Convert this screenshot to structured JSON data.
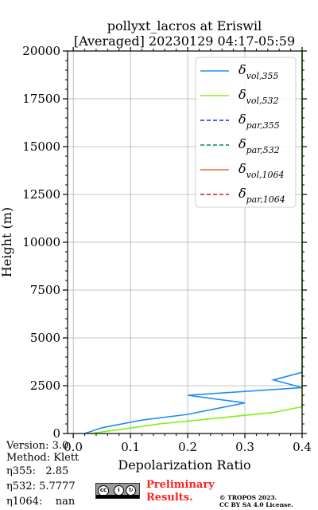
{
  "chart_data": {
    "type": "line",
    "title_lines": [
      "pollyxt_lacros at Eriswil",
      "[Averaged] 20230129 04:17-05:59"
    ],
    "xlabel": "Depolarization Ratio",
    "ylabel": "Height (m)",
    "xlim": [
      -0.01,
      0.4
    ],
    "ylim": [
      0,
      20000
    ],
    "xticks": [
      0.0,
      0.1,
      0.2,
      0.3,
      0.4
    ],
    "xtick_labels": [
      "0.0",
      "0.1",
      "0.2",
      "0.3",
      "0.4"
    ],
    "yticks": [
      0,
      2500,
      5000,
      7500,
      10000,
      12500,
      15000,
      17500,
      20000
    ],
    "ytick_labels": [
      "0",
      "2500",
      "5000",
      "7500",
      "10000",
      "12500",
      "15000",
      "17500",
      "20000"
    ],
    "grid": true,
    "legend_position": "upper right",
    "series": [
      {
        "name": "δ vol,355",
        "color": "#1f8ff0",
        "dash": "solid",
        "points": [
          [
            0.02,
            0
          ],
          [
            0.05,
            300
          ],
          [
            0.12,
            700
          ],
          [
            0.2,
            1000
          ],
          [
            0.25,
            1300
          ],
          [
            0.3,
            1600
          ],
          [
            0.2,
            2000
          ],
          [
            0.4,
            2400
          ],
          [
            0.35,
            2800
          ],
          [
            0.4,
            3200
          ],
          [
            0.4,
            4000
          ],
          [
            0.4,
            5000
          ],
          [
            0.4,
            6000
          ],
          [
            0.4,
            7000
          ],
          [
            0.4,
            8000
          ],
          [
            0.4,
            9000
          ],
          [
            0.4,
            10000
          ],
          [
            0.4,
            11000
          ],
          [
            0.4,
            12000
          ],
          [
            0.4,
            13000
          ],
          [
            0.4,
            14000
          ],
          [
            0.4,
            15000
          ],
          [
            0.4,
            16000
          ],
          [
            0.4,
            17000
          ],
          [
            0.4,
            18000
          ],
          [
            0.4,
            19000
          ],
          [
            0.4,
            20000
          ]
        ]
      },
      {
        "name": "δ vol,532",
        "color": "#80f010",
        "dash": "solid",
        "points": [
          [
            0.03,
            0
          ],
          [
            0.08,
            200
          ],
          [
            0.15,
            500
          ],
          [
            0.25,
            800
          ],
          [
            0.35,
            1100
          ],
          [
            0.4,
            1400
          ],
          [
            0.4,
            2000
          ],
          [
            0.4,
            3000
          ],
          [
            0.4,
            4000
          ],
          [
            0.4,
            5000
          ],
          [
            0.4,
            6000
          ],
          [
            0.4,
            7000
          ],
          [
            0.4,
            8000
          ],
          [
            0.4,
            9000
          ],
          [
            0.4,
            10000
          ],
          [
            0.4,
            11000
          ],
          [
            0.4,
            12000
          ],
          [
            0.4,
            13000
          ],
          [
            0.4,
            14000
          ],
          [
            0.4,
            15000
          ],
          [
            0.4,
            16000
          ],
          [
            0.4,
            17000
          ],
          [
            0.4,
            18000
          ],
          [
            0.4,
            19000
          ],
          [
            0.4,
            20000
          ]
        ]
      },
      {
        "name": "δ par,355",
        "color": "#1a2bd0",
        "dash": "dashed",
        "points": []
      },
      {
        "name": "δ par,532",
        "color": "#0e8a4a",
        "dash": "dashed",
        "points": []
      },
      {
        "name": "δ vol,1064",
        "color": "#f06040",
        "dash": "solid",
        "points": []
      },
      {
        "name": "δ par,1064",
        "color": "#d01a1a",
        "dash": "dashed",
        "points": []
      }
    ],
    "legend": [
      {
        "base": "δ",
        "sub": "vol,355",
        "color": "#1f8ff0",
        "dash": "solid"
      },
      {
        "base": "δ",
        "sub": "vol,532",
        "color": "#80f010",
        "dash": "solid"
      },
      {
        "base": "δ",
        "sub": "par,355",
        "color": "#1a2bd0",
        "dash": "dashed"
      },
      {
        "base": "δ",
        "sub": "par,532",
        "color": "#0e8a4a",
        "dash": "dashed"
      },
      {
        "base": "δ",
        "sub": "vol,1064",
        "color": "#f06040",
        "dash": "solid"
      },
      {
        "base": "δ",
        "sub": "par,1064",
        "color": "#d01a1a",
        "dash": "dashed"
      }
    ]
  },
  "footer": {
    "version": "Version: 3.0",
    "method": "Method: Klett",
    "eta355": "η355:   2.85",
    "eta532": "η532: 5.7777",
    "eta1064": "η1064:    nan",
    "preliminary_line1": "Preliminary",
    "preliminary_line2": "Results.",
    "copyright_line1": "© TROPOS 2023.",
    "copyright_line2": "CC BY SA 4.0 License.",
    "license_badge_text": "BY  SA"
  }
}
